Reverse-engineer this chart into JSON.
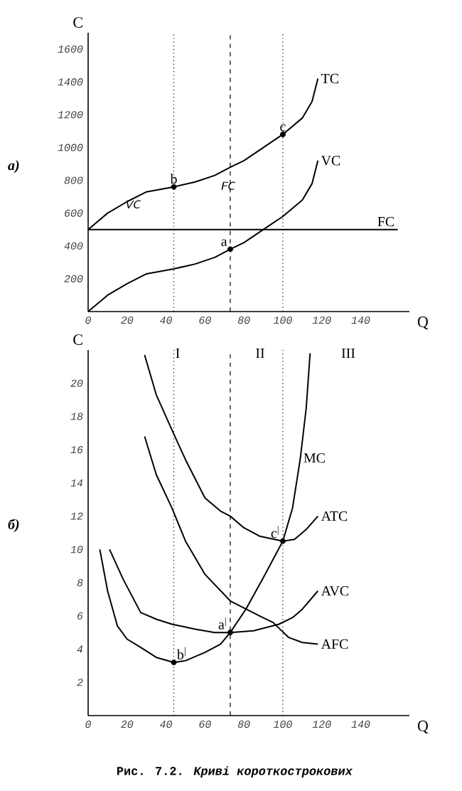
{
  "chart_data": [
    {
      "type": "line",
      "xlabel": "Q",
      "ylabel": "C",
      "xlim": [
        0,
        165
      ],
      "ylim": [
        0,
        1700
      ],
      "xticks": [
        0,
        20,
        40,
        60,
        80,
        100,
        120,
        140
      ],
      "yticks": [
        200,
        400,
        600,
        800,
        1000,
        1200,
        1400,
        1600
      ],
      "marker": "none",
      "series": [
        {
          "name": "TC",
          "color": "#000000",
          "x": [
            0,
            10,
            20,
            30,
            44,
            55,
            65,
            73,
            80,
            90,
            100,
            110,
            115,
            118
          ],
          "values": [
            500,
            600,
            670,
            730,
            760,
            790,
            830,
            880,
            920,
            1000,
            1080,
            1180,
            1280,
            1420
          ]
        },
        {
          "name": "VC",
          "color": "#000000",
          "x": [
            0,
            10,
            20,
            30,
            44,
            55,
            65,
            73,
            80,
            90,
            100,
            110,
            115,
            118
          ],
          "values": [
            0,
            100,
            170,
            230,
            260,
            290,
            330,
            380,
            420,
            500,
            580,
            680,
            780,
            920
          ]
        },
        {
          "name": "FC",
          "color": "#000000",
          "x": [
            0,
            159
          ],
          "values": [
            500,
            500
          ]
        },
        {
          "type": "scatter",
          "marker": "circle",
          "color": "#000000",
          "x": [
            44,
            73,
            100
          ],
          "values": [
            760,
            380,
            1080
          ]
        }
      ],
      "ref_lines": [
        {
          "axis": "x",
          "value": 44,
          "line_style": "dotted"
        },
        {
          "axis": "x",
          "value": 73,
          "line_style": "dashed"
        },
        {
          "axis": "x",
          "value": 100,
          "line_style": "dotted"
        }
      ],
      "annotations": [
        "а)",
        {
          "text": "b",
          "x": 44,
          "y": 760
        },
        {
          "text": "a",
          "x": 73,
          "y": 380
        },
        {
          "text": "c",
          "x": 100,
          "y": 1080
        },
        "VC",
        "FC"
      ]
    },
    {
      "type": "line",
      "xlabel": "Q",
      "ylabel": "C",
      "xlim": [
        0,
        165
      ],
      "ylim": [
        0,
        22
      ],
      "xticks": [
        0,
        20,
        40,
        60,
        80,
        100,
        120,
        140
      ],
      "yticks": [
        2,
        4,
        6,
        8,
        10,
        12,
        14,
        16,
        18,
        20
      ],
      "marker": "none",
      "series": [
        {
          "name": "MC",
          "color": "#000000",
          "x": [
            6,
            10,
            15,
            20,
            27,
            35,
            44,
            50,
            60,
            68,
            73,
            81,
            90,
            100,
            105,
            109,
            112,
            114
          ],
          "values": [
            10,
            7.5,
            5.4,
            4.6,
            4.1,
            3.5,
            3.2,
            3.3,
            3.8,
            4.3,
            5.0,
            6.4,
            8.3,
            10.5,
            12.5,
            15.5,
            18.5,
            21.8
          ]
        },
        {
          "name": "ATC",
          "color": "#000000",
          "x": [
            29,
            35,
            43,
            50,
            60,
            68,
            73,
            80,
            88,
            100,
            106,
            112,
            118
          ],
          "values": [
            21.7,
            19.3,
            17.2,
            15.4,
            13.1,
            12.3,
            12.0,
            11.3,
            10.8,
            10.5,
            10.6,
            11.2,
            12.0
          ]
        },
        {
          "name": "AVC",
          "color": "#000000",
          "x": [
            11,
            18,
            27,
            35,
            43,
            55,
            65,
            73,
            85,
            98,
            105,
            110,
            118
          ],
          "values": [
            10,
            8.2,
            6.2,
            5.8,
            5.5,
            5.2,
            5.0,
            5.0,
            5.1,
            5.5,
            5.9,
            6.4,
            7.5
          ]
        },
        {
          "name": "AFC",
          "color": "#000000",
          "x": [
            29,
            35,
            43,
            50,
            60,
            73,
            88,
            95,
            103,
            110,
            118
          ],
          "values": [
            16.8,
            14.5,
            12.5,
            10.5,
            8.5,
            6.9,
            6.0,
            5.6,
            4.7,
            4.4,
            4.3
          ]
        },
        {
          "type": "scatter",
          "marker": "circle",
          "color": "#000000",
          "x": [
            44,
            73,
            100
          ],
          "values": [
            3.2,
            5.0,
            10.5
          ]
        }
      ],
      "ref_lines": [
        {
          "axis": "x",
          "value": 44,
          "line_style": "dotted"
        },
        {
          "axis": "x",
          "value": 73,
          "line_style": "dashed"
        },
        {
          "axis": "x",
          "value": 100,
          "line_style": "dotted"
        }
      ],
      "annotations": [
        "б)",
        "I",
        "II",
        "III",
        {
          "text": "b$^{|}$",
          "x": 44,
          "y": 3.2
        },
        {
          "text": "a$^{|}$",
          "x": 73,
          "y": 5.0
        },
        {
          "text": "c$^{|}$",
          "x": 100,
          "y": 10.5
        },
        "Рис. 7.2. *Криві короткострокових*"
      ]
    }
  ]
}
